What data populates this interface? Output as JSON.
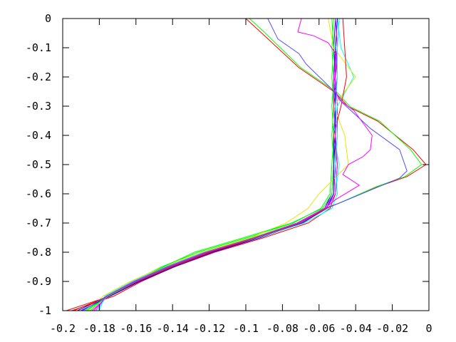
{
  "chart_data": {
    "type": "line",
    "title": "",
    "xlabel": "",
    "ylabel": "",
    "xlim": [
      -0.2,
      0
    ],
    "ylim": [
      -1,
      0
    ],
    "grid": false,
    "legend": "none",
    "xticks": [
      -0.2,
      -0.18,
      -0.16,
      -0.14,
      -0.12,
      -0.1,
      -0.08,
      -0.06,
      -0.04,
      -0.02,
      0
    ],
    "xtick_labels": [
      "-0.2",
      "-0.18",
      "-0.16",
      "-0.14",
      "-0.12",
      "-0.1",
      "-0.08",
      "-0.06",
      "-0.04",
      "-0.02",
      "0"
    ],
    "yticks": [
      0,
      -0.1,
      -0.2,
      -0.3,
      -0.4,
      -0.5,
      -0.6,
      -0.7,
      -0.8,
      -0.9,
      -1
    ],
    "ytick_labels": [
      "0",
      "-0.1",
      "-0.2",
      "-0.3",
      "-0.4",
      "-0.5",
      "-0.6",
      "-0.7",
      "-0.8",
      "-0.9",
      "-1"
    ],
    "colors": [
      "#ff0000",
      "#00ff00",
      "#0000ff",
      "#ff00ff",
      "#00ffff",
      "#e6e600"
    ],
    "bundle_y": [
      0,
      -0.1,
      -0.2,
      -0.3,
      -0.4,
      -0.5,
      -0.6,
      -0.65,
      -0.7,
      -0.75,
      -0.8,
      -0.85,
      -0.9,
      -0.95,
      -1
    ],
    "bundle_series": [
      {
        "color": "#ff0000",
        "x": [
          -0.05,
          -0.051,
          -0.05,
          -0.052,
          -0.051,
          -0.051,
          -0.052,
          -0.056,
          -0.07,
          -0.093,
          -0.119,
          -0.14,
          -0.158,
          -0.174,
          -0.198
        ]
      },
      {
        "color": "#00ff00",
        "x": [
          -0.052,
          -0.053,
          -0.052,
          -0.053,
          -0.052,
          -0.053,
          -0.054,
          -0.059,
          -0.074,
          -0.099,
          -0.126,
          -0.146,
          -0.162,
          -0.176,
          -0.185
        ]
      },
      {
        "color": "#0000ff",
        "x": [
          -0.051,
          -0.052,
          -0.051,
          -0.051,
          -0.052,
          -0.052,
          -0.053,
          -0.057,
          -0.071,
          -0.094,
          -0.12,
          -0.141,
          -0.159,
          -0.175,
          -0.192
        ]
      },
      {
        "color": "#ff00ff",
        "x": [
          -0.049,
          -0.05,
          -0.051,
          -0.05,
          -0.05,
          -0.051,
          -0.052,
          -0.057,
          -0.072,
          -0.096,
          -0.123,
          -0.143,
          -0.161,
          -0.176,
          -0.182
        ]
      },
      {
        "color": "#00ffff",
        "x": [
          -0.05,
          -0.048,
          -0.041,
          -0.05,
          -0.052,
          -0.049,
          -0.051,
          -0.055,
          -0.07,
          -0.095,
          -0.123,
          -0.144,
          -0.162,
          -0.177,
          -0.18
        ]
      },
      {
        "color": "#e6e600",
        "x": [
          -0.055,
          -0.052,
          -0.04,
          -0.052,
          -0.046,
          -0.044,
          -0.06,
          -0.066,
          -0.078,
          -0.097,
          -0.124,
          -0.145,
          -0.163,
          -0.178,
          -0.186
        ]
      },
      {
        "color": "#ff0000",
        "x": [
          -0.047,
          -0.046,
          -0.045,
          -0.048,
          -0.052,
          -0.05,
          -0.051,
          -0.054,
          -0.066,
          -0.09,
          -0.117,
          -0.139,
          -0.157,
          -0.172,
          -0.195
        ]
      },
      {
        "color": "#00ff00",
        "x": [
          -0.053,
          -0.052,
          -0.053,
          -0.052,
          -0.053,
          -0.052,
          -0.053,
          -0.058,
          -0.075,
          -0.101,
          -0.128,
          -0.145,
          -0.16,
          -0.175,
          -0.188
        ]
      },
      {
        "color": "#0000ff",
        "x": [
          -0.05,
          -0.051,
          -0.052,
          -0.051,
          -0.051,
          -0.052,
          -0.052,
          -0.056,
          -0.069,
          -0.092,
          -0.118,
          -0.139,
          -0.158,
          -0.174,
          -0.19
        ]
      },
      {
        "color": "#ff00ff",
        "x": [
          -0.051,
          -0.05,
          -0.052,
          -0.052,
          -0.051,
          -0.05,
          -0.051,
          -0.056,
          -0.071,
          -0.094,
          -0.121,
          -0.142,
          -0.16,
          -0.175,
          -0.184
        ]
      },
      {
        "color": "#00ffff",
        "x": [
          -0.049,
          -0.05,
          -0.05,
          -0.051,
          -0.05,
          -0.051,
          -0.05,
          -0.053,
          -0.068,
          -0.093,
          -0.122,
          -0.143,
          -0.161,
          -0.176,
          -0.181
        ]
      }
    ],
    "outlier_series": [
      {
        "color": "#ff0000",
        "x": [
          -0.1,
          -0.092,
          -0.071,
          -0.051,
          -0.044,
          -0.028,
          -0.0086,
          -0.0016,
          -0.012,
          -0.028,
          -0.049,
          -0.056,
          -0.07,
          -0.094,
          -0.12,
          -0.141,
          -0.159,
          -0.175,
          -0.194
        ],
        "y": [
          0,
          -0.046,
          -0.168,
          -0.254,
          -0.302,
          -0.351,
          -0.449,
          -0.5,
          -0.541,
          -0.576,
          -0.632,
          -0.65,
          -0.7,
          -0.75,
          -0.8,
          -0.85,
          -0.9,
          -0.95,
          -1
        ]
      },
      {
        "color": "#00ff00",
        "x": [
          -0.098,
          -0.09,
          -0.07,
          -0.05,
          -0.043,
          -0.027,
          -0.01,
          -0.004,
          -0.013,
          -0.029,
          -0.049,
          -0.057,
          -0.072,
          -0.096,
          -0.122,
          -0.142,
          -0.16,
          -0.175,
          -0.187
        ],
        "y": [
          0,
          -0.046,
          -0.168,
          -0.254,
          -0.302,
          -0.351,
          -0.449,
          -0.5,
          -0.541,
          -0.576,
          -0.632,
          -0.65,
          -0.7,
          -0.75,
          -0.8,
          -0.85,
          -0.9,
          -0.95,
          -1
        ]
      },
      {
        "color": "#5050ff",
        "x": [
          -0.088,
          -0.0825,
          -0.071,
          -0.067,
          -0.051,
          -0.047,
          -0.032,
          -0.016,
          -0.012,
          -0.016,
          -0.049,
          -0.057,
          -0.071,
          -0.095,
          -0.121,
          -0.142,
          -0.16,
          -0.176,
          -0.189
        ],
        "y": [
          0,
          -0.07,
          -0.12,
          -0.156,
          -0.254,
          -0.29,
          -0.376,
          -0.449,
          -0.522,
          -0.546,
          -0.632,
          -0.65,
          -0.7,
          -0.75,
          -0.8,
          -0.85,
          -0.9,
          -0.95,
          -1
        ]
      },
      {
        "color": "#ff00ff",
        "x": [
          -0.0696,
          -0.0716,
          -0.063,
          -0.055,
          -0.051,
          -0.051,
          -0.052,
          -0.049,
          -0.041,
          -0.031,
          -0.032,
          -0.036,
          -0.044,
          -0.047,
          -0.038,
          -0.051,
          -0.057,
          -0.072,
          -0.095,
          -0.122,
          -0.143,
          -0.161,
          -0.176,
          -0.183
        ],
        "y": [
          0,
          -0.046,
          -0.059,
          -0.083,
          -0.12,
          -0.18,
          -0.23,
          -0.278,
          -0.315,
          -0.4,
          -0.449,
          -0.473,
          -0.5,
          -0.534,
          -0.571,
          -0.62,
          -0.65,
          -0.7,
          -0.75,
          -0.8,
          -0.85,
          -0.9,
          -0.95,
          -1
        ]
      }
    ]
  }
}
